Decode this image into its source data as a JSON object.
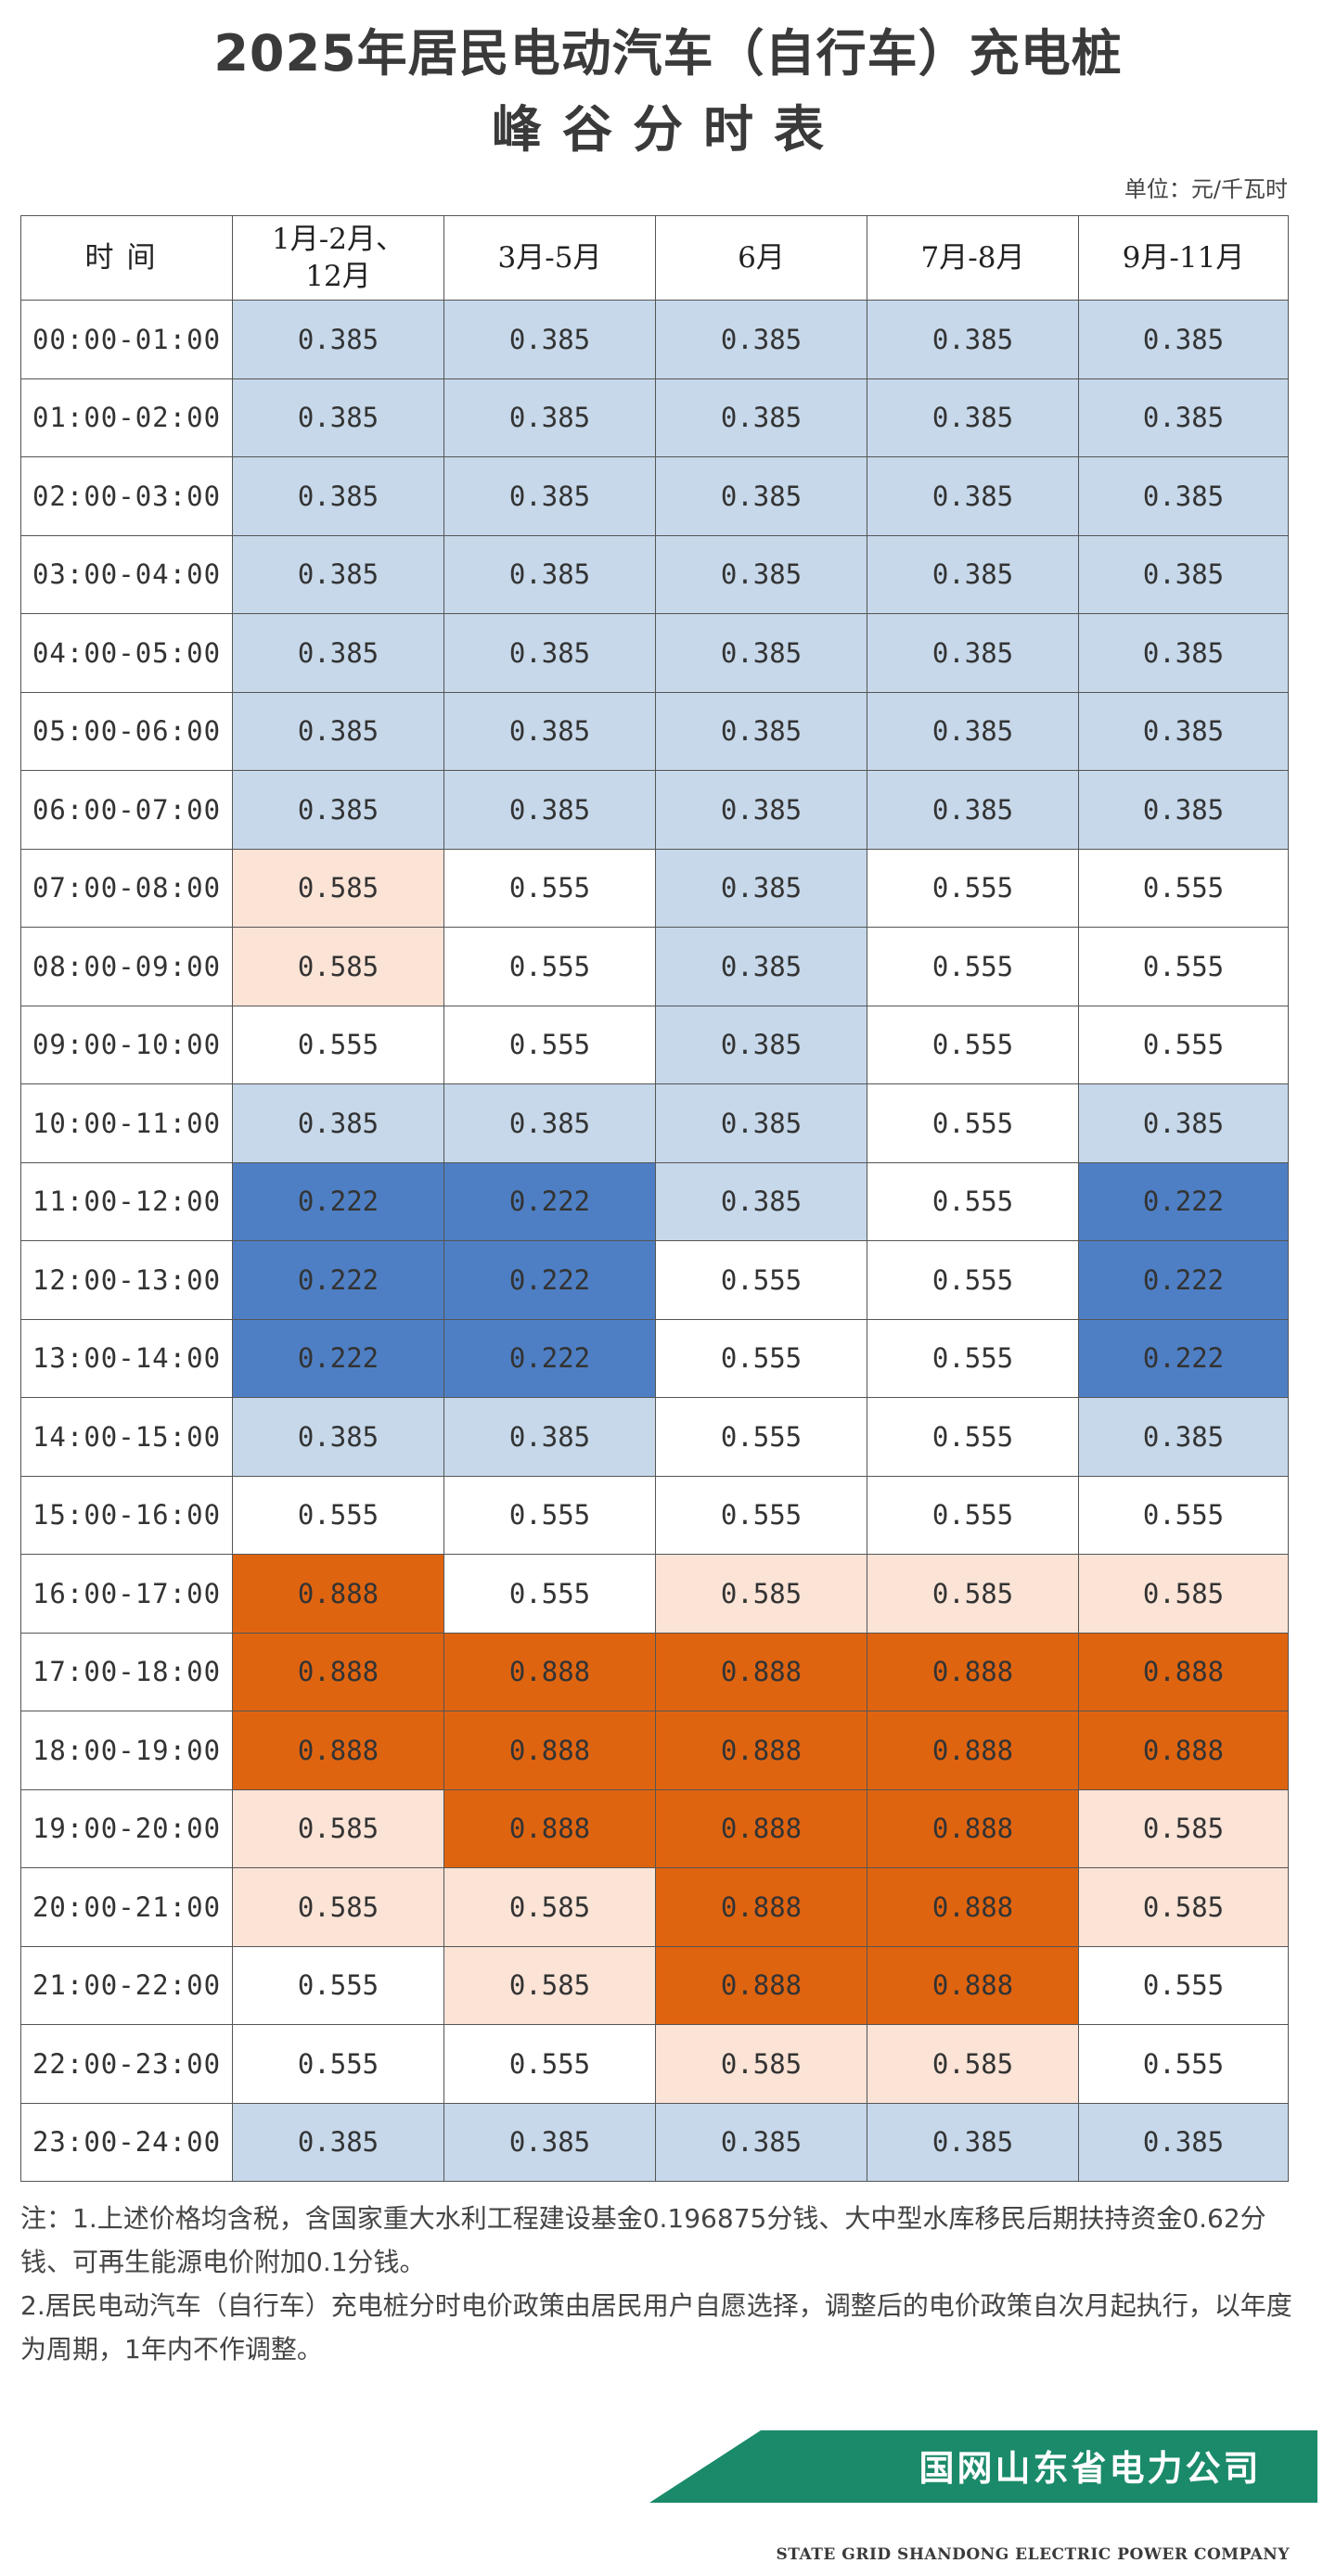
{
  "title": {
    "line1": "2025年居民电动汽车（自行车）充电桩",
    "line2": "峰谷分时表"
  },
  "unit": "单位：元/千瓦时",
  "colors": {
    "valley": "#c6d8ea",
    "deep_valley": "#4e7fc4",
    "flat": "#ffffff",
    "peak": "#fbe3d6",
    "sharp_peak": "#df6410"
  },
  "table": {
    "headers": [
      "时间",
      "1月-2月、12月",
      "3月-5月",
      "6月",
      "7月-8月",
      "9月-11月"
    ],
    "rows": [
      {
        "time": "00:00-01:00",
        "values": [
          "0.385",
          "0.385",
          "0.385",
          "0.385",
          "0.385"
        ]
      },
      {
        "time": "01:00-02:00",
        "values": [
          "0.385",
          "0.385",
          "0.385",
          "0.385",
          "0.385"
        ]
      },
      {
        "time": "02:00-03:00",
        "values": [
          "0.385",
          "0.385",
          "0.385",
          "0.385",
          "0.385"
        ]
      },
      {
        "time": "03:00-04:00",
        "values": [
          "0.385",
          "0.385",
          "0.385",
          "0.385",
          "0.385"
        ]
      },
      {
        "time": "04:00-05:00",
        "values": [
          "0.385",
          "0.385",
          "0.385",
          "0.385",
          "0.385"
        ]
      },
      {
        "time": "05:00-06:00",
        "values": [
          "0.385",
          "0.385",
          "0.385",
          "0.385",
          "0.385"
        ]
      },
      {
        "time": "06:00-07:00",
        "values": [
          "0.385",
          "0.385",
          "0.385",
          "0.385",
          "0.385"
        ]
      },
      {
        "time": "07:00-08:00",
        "values": [
          "0.585",
          "0.555",
          "0.385",
          "0.555",
          "0.555"
        ]
      },
      {
        "time": "08:00-09:00",
        "values": [
          "0.585",
          "0.555",
          "0.385",
          "0.555",
          "0.555"
        ]
      },
      {
        "time": "09:00-10:00",
        "values": [
          "0.555",
          "0.555",
          "0.385",
          "0.555",
          "0.555"
        ]
      },
      {
        "time": "10:00-11:00",
        "values": [
          "0.385",
          "0.385",
          "0.385",
          "0.555",
          "0.385"
        ]
      },
      {
        "time": "11:00-12:00",
        "values": [
          "0.222",
          "0.222",
          "0.385",
          "0.555",
          "0.222"
        ]
      },
      {
        "time": "12:00-13:00",
        "values": [
          "0.222",
          "0.222",
          "0.555",
          "0.555",
          "0.222"
        ]
      },
      {
        "time": "13:00-14:00",
        "values": [
          "0.222",
          "0.222",
          "0.555",
          "0.555",
          "0.222"
        ]
      },
      {
        "time": "14:00-15:00",
        "values": [
          "0.385",
          "0.385",
          "0.555",
          "0.555",
          "0.385"
        ]
      },
      {
        "time": "15:00-16:00",
        "values": [
          "0.555",
          "0.555",
          "0.555",
          "0.555",
          "0.555"
        ]
      },
      {
        "time": "16:00-17:00",
        "values": [
          "0.888",
          "0.555",
          "0.585",
          "0.585",
          "0.585"
        ]
      },
      {
        "time": "17:00-18:00",
        "values": [
          "0.888",
          "0.888",
          "0.888",
          "0.888",
          "0.888"
        ]
      },
      {
        "time": "18:00-19:00",
        "values": [
          "0.888",
          "0.888",
          "0.888",
          "0.888",
          "0.888"
        ]
      },
      {
        "time": "19:00-20:00",
        "values": [
          "0.585",
          "0.888",
          "0.888",
          "0.888",
          "0.585"
        ]
      },
      {
        "time": "20:00-21:00",
        "values": [
          "0.585",
          "0.585",
          "0.888",
          "0.888",
          "0.585"
        ]
      },
      {
        "time": "21:00-22:00",
        "values": [
          "0.555",
          "0.585",
          "0.888",
          "0.888",
          "0.555"
        ]
      },
      {
        "time": "22:00-23:00",
        "values": [
          "0.555",
          "0.555",
          "0.585",
          "0.585",
          "0.555"
        ]
      },
      {
        "time": "23:00-24:00",
        "values": [
          "0.385",
          "0.385",
          "0.385",
          "0.385",
          "0.385"
        ]
      }
    ]
  },
  "notes": {
    "line1": "注：1.上述价格均含税，含国家重大水利工程建设基金0.196875分钱、大中型水库移民后期扶持资金0.62分钱、可再生能源电价附加0.1分钱。",
    "line2": "2.居民电动汽车（自行车）充电桩分时电价政策由居民用户自愿选择，调整后的电价政策自次月起执行，以年度为周期，1年内不作调整。"
  },
  "footer": {
    "company_cn": "国网山东省电力公司",
    "company_en": "STATE GRID SHANDONG ELECTRIC POWER COMPANY",
    "band_color": "#1a8a6a"
  }
}
